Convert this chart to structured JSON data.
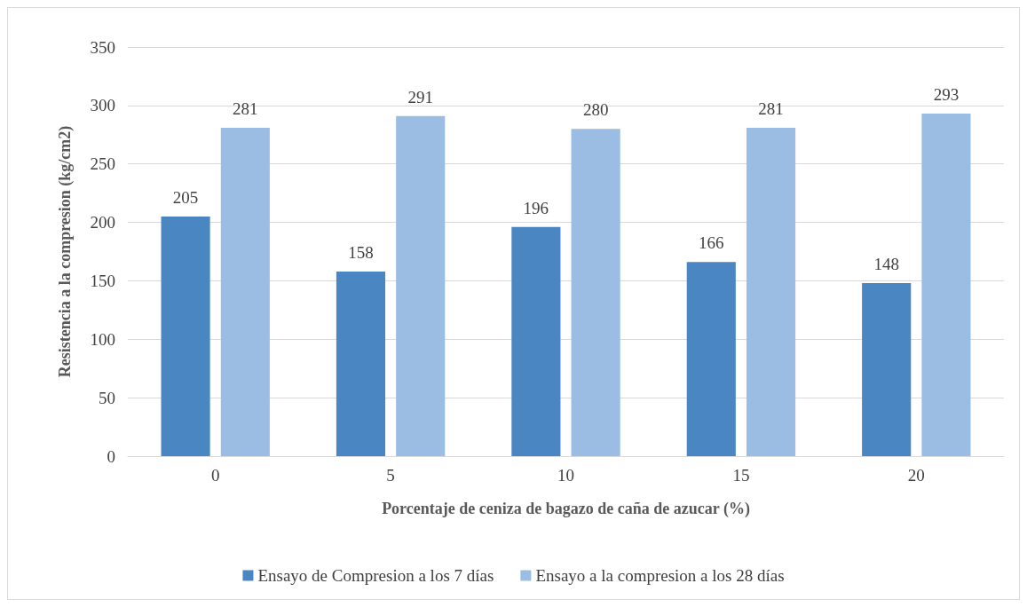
{
  "chart_data": {
    "type": "bar",
    "xlabel": "Porcentaje de ceniza de bagazo de caña de azucar (%)",
    "ylabel": "Resistencia a la compresion (kg/cm2)",
    "categories": [
      "0",
      "5",
      "10",
      "15",
      "20"
    ],
    "series": [
      {
        "name": "Ensayo de Compresion a los 7 días",
        "color": "#4a86c2",
        "values": [
          205,
          158,
          196,
          166,
          148
        ]
      },
      {
        "name": "Ensayo a la compresion a los 28 días",
        "color": "#9bbde3",
        "values": [
          281,
          291,
          280,
          281,
          293
        ]
      }
    ],
    "ylim": [
      0,
      350
    ],
    "yticks": [
      0,
      50,
      100,
      150,
      200,
      250,
      300,
      350
    ],
    "grid": "y",
    "legend": "bottom",
    "data_labels": true
  }
}
